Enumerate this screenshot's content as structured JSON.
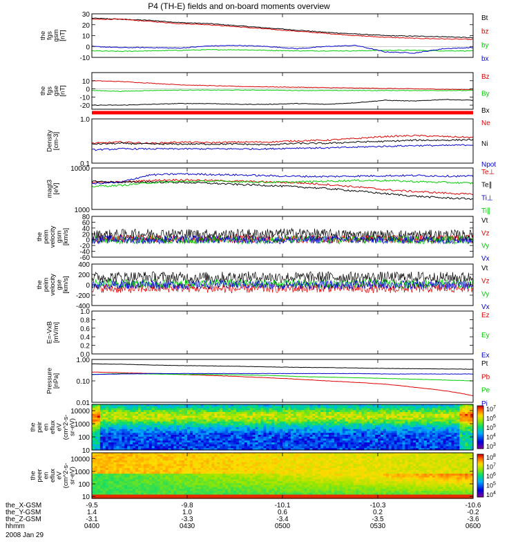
{
  "title": "P4 (TH-E) fields and on-board moments overview",
  "date_label": "2008 Jan 29",
  "colors": {
    "black": "#000000",
    "red": "#dd0000",
    "green": "#00cc00",
    "blue": "#0000cc",
    "status_bar": "#ff0000"
  },
  "chart_data": [
    {
      "type": "line",
      "id": "fgs_gsm",
      "ylabel": [
        "the",
        "fgs",
        "gsm",
        "[nT]"
      ],
      "ylim": [
        -10,
        30
      ],
      "yticks": [
        -10,
        0,
        10,
        20,
        30
      ],
      "yticklabels": [
        "-10",
        "0",
        "10",
        "20",
        "30"
      ],
      "log": false,
      "series": [
        {
          "name": "Bt",
          "color": "#000000",
          "values": [
            26,
            25,
            24,
            22,
            21,
            19,
            17,
            15,
            13,
            11.5,
            10,
            9.5,
            9,
            8
          ]
        },
        {
          "name": "bz",
          "color": "#dd0000",
          "values": [
            25,
            25,
            23,
            21,
            20,
            18,
            16,
            14,
            12,
            10,
            8.5,
            7.5,
            7,
            6.5
          ]
        },
        {
          "name": "by",
          "color": "#00cc00",
          "values": [
            -4,
            -4.5,
            -4,
            -3.5,
            -3,
            -3,
            -3.5,
            -4,
            -4,
            -4,
            -3.5,
            -3.5,
            -4,
            -4
          ]
        },
        {
          "name": "bx",
          "color": "#0000cc",
          "values": [
            0,
            -1,
            -1,
            -1.5,
            0.5,
            1,
            0,
            -2,
            0,
            1,
            -5,
            -6,
            -2,
            -1
          ]
        }
      ]
    },
    {
      "type": "line",
      "id": "fgs_gse",
      "ylabel": [
        "the",
        "fgs",
        "gse",
        "[nT]"
      ],
      "ylim": [
        -25,
        20
      ],
      "yticks": [
        -20,
        -10,
        0,
        10
      ],
      "yticklabels": [
        "-20",
        "-10",
        "0",
        "10"
      ],
      "log": false,
      "series": [
        {
          "name": "Bz",
          "color": "#dd0000",
          "values": [
            10,
            9,
            7,
            5,
            4,
            3,
            2.5,
            2,
            1.5,
            1,
            0.5,
            0,
            -0.5,
            -1
          ]
        },
        {
          "name": "By",
          "color": "#00cc00",
          "values": [
            -2,
            -3,
            -2,
            -1.5,
            -1.5,
            -1.5,
            -1.5,
            -2,
            -2,
            -2,
            -2,
            -2,
            -2,
            -2
          ]
        },
        {
          "name": "Bx",
          "color": "#000000",
          "values": [
            -20,
            -20,
            -19,
            -18,
            -18,
            -19,
            -19,
            -18,
            -19,
            -17,
            -14,
            -15,
            -13,
            -14
          ]
        }
      ]
    },
    {
      "type": "line",
      "id": "density",
      "ylabel": [
        "Density",
        "[cm-3]"
      ],
      "ylim": [
        0.1,
        1.0
      ],
      "yticks": [
        0.1,
        1.0
      ],
      "yticklabels": [
        "0.1",
        "1.0"
      ],
      "log": true,
      "series": [
        {
          "name": "Ne",
          "color": "#dd0000",
          "values": [
            0.28,
            0.3,
            0.28,
            0.3,
            0.29,
            0.3,
            0.3,
            0.32,
            0.33,
            0.36,
            0.4,
            0.42,
            0.4,
            0.38
          ]
        },
        {
          "name": "Ni",
          "color": "#000000",
          "values": [
            0.27,
            0.28,
            0.27,
            0.27,
            0.27,
            0.27,
            0.26,
            0.28,
            0.28,
            0.3,
            0.31,
            0.33,
            0.33,
            0.34
          ]
        },
        {
          "name": "Npot",
          "color": "#0000cc",
          "values": [
            0.2,
            0.21,
            0.21,
            0.21,
            0.21,
            0.21,
            0.21,
            0.22,
            0.22,
            0.23,
            0.24,
            0.25,
            0.25,
            0.26
          ]
        }
      ]
    },
    {
      "type": "line",
      "id": "temperature",
      "ylabel": [
        "magt3",
        "[eV]"
      ],
      "ylim": [
        1000,
        10000
      ],
      "yticks": [
        1000,
        10000
      ],
      "yticklabels": [
        "1000",
        "10000"
      ],
      "log": true,
      "series": [
        {
          "name": "Te⊥",
          "color": "#dd0000",
          "values": [
            4500,
            4600,
            5000,
            5200,
            5000,
            4800,
            4600,
            4400,
            4000,
            3500,
            3000,
            2700,
            2500,
            2300
          ]
        },
        {
          "name": "Te∥",
          "color": "#000000",
          "values": [
            4800,
            4500,
            4600,
            4500,
            4300,
            4000,
            3800,
            3500,
            3200,
            2800,
            2400,
            2100,
            1900,
            1800
          ]
        },
        {
          "name": "Ti⊥",
          "color": "#0000cc",
          "values": [
            4200,
            4500,
            6800,
            7200,
            7000,
            6800,
            6500,
            6300,
            6200,
            6400,
            6500,
            6600,
            6400,
            6300
          ]
        },
        {
          "name": "Ti∥",
          "color": "#00cc00",
          "values": [
            3600,
            3800,
            4400,
            4700,
            4800,
            4700,
            4500,
            4600,
            4800,
            5000,
            5000,
            4700,
            4500,
            4300
          ]
        }
      ]
    },
    {
      "type": "line",
      "id": "velocity_gsm",
      "ylabel": [
        "the",
        "peim",
        "velocity",
        "gsm",
        "[km/s]"
      ],
      "ylim": [
        -60,
        80
      ],
      "yticks": [
        -60,
        -40,
        -20,
        0,
        20,
        40,
        60,
        80
      ],
      "yticklabels": [
        "-60",
        "-40",
        "-20",
        "0",
        "20",
        "40",
        "60",
        "80"
      ],
      "log": false,
      "series": [
        {
          "name": "Vt",
          "color": "#000000",
          "values": [
            15,
            18,
            20,
            20,
            18,
            18,
            20,
            22,
            18,
            16,
            15,
            15,
            16,
            15
          ]
        },
        {
          "name": "Vz",
          "color": "#dd0000",
          "values": [
            2,
            3,
            2,
            1,
            2,
            3,
            2,
            2,
            1,
            2,
            2,
            1,
            2,
            2
          ]
        },
        {
          "name": "Vy",
          "color": "#00cc00",
          "values": [
            -1,
            -2,
            0,
            -1,
            0,
            -2,
            -1,
            0,
            -1,
            -1,
            0,
            -1,
            -1,
            0
          ]
        },
        {
          "name": "Vx",
          "color": "#0000cc",
          "values": [
            0,
            1,
            -1,
            0,
            1,
            0,
            -1,
            0,
            1,
            0,
            0,
            1,
            0,
            0
          ]
        }
      ]
    },
    {
      "type": "line",
      "id": "velocity_gse",
      "ylabel": [
        "the",
        "peim",
        "velocity",
        "gse",
        "[km/s]"
      ],
      "ylim": [
        -400,
        400
      ],
      "yticks": [
        -400,
        -200,
        0,
        200,
        400
      ],
      "yticklabels": [
        "-400",
        "-200",
        "0",
        "200",
        "400"
      ],
      "log": false,
      "series": [
        {
          "name": "Vt",
          "color": "#000000",
          "values": [
            140,
            150,
            150,
            140,
            140,
            150,
            145,
            140,
            150,
            140,
            140,
            145,
            140,
            140
          ]
        },
        {
          "name": "Vz",
          "color": "#dd0000",
          "values": [
            -60,
            -80,
            -70,
            -60,
            -70,
            -80,
            -70,
            -70,
            -60,
            -70,
            -80,
            -70,
            -70,
            -60
          ]
        },
        {
          "name": "Vy",
          "color": "#00cc00",
          "values": [
            20,
            30,
            20,
            10,
            25,
            20,
            10,
            20,
            10,
            20,
            20,
            10,
            20,
            10
          ]
        },
        {
          "name": "Vx",
          "color": "#0000cc",
          "values": [
            -10,
            0,
            10,
            -5,
            0,
            5,
            -5,
            0,
            -10,
            0,
            5,
            -5,
            0,
            0
          ]
        }
      ]
    },
    {
      "type": "line",
      "id": "efield",
      "ylabel": [
        "E=-VxB",
        "[mV/m]"
      ],
      "ylim": [
        0.0,
        1.0
      ],
      "yticks": [
        0.0,
        0.2,
        0.4,
        0.6,
        0.8,
        1.0
      ],
      "yticklabels": [
        "0.0",
        "0.2",
        "0.4",
        "0.6",
        "0.8",
        "1.0"
      ],
      "log": false,
      "series": [
        {
          "name": "Ez",
          "color": "#dd0000",
          "values": []
        },
        {
          "name": "Ey",
          "color": "#00cc00",
          "values": []
        },
        {
          "name": "Ex",
          "color": "#0000cc",
          "values": []
        }
      ]
    },
    {
      "type": "line",
      "id": "pressure",
      "ylabel": [
        "Pressure",
        "[nPa]"
      ],
      "ylim": [
        0.01,
        1.0
      ],
      "yticks": [
        0.01,
        0.1,
        1.0
      ],
      "yticklabels": [
        "0.01",
        "0.10",
        "1.00"
      ],
      "log": true,
      "series": [
        {
          "name": "Pt",
          "color": "#000000",
          "values": [
            0.62,
            0.6,
            0.55,
            0.52,
            0.5,
            0.48,
            0.45,
            0.43,
            0.42,
            0.4,
            0.38,
            0.37,
            0.36,
            0.35
          ]
        },
        {
          "name": "Pb",
          "color": "#dd0000",
          "values": [
            0.26,
            0.24,
            0.22,
            0.2,
            0.18,
            0.16,
            0.14,
            0.12,
            0.1,
            0.085,
            0.07,
            0.05,
            0.035,
            0.02
          ]
        },
        {
          "name": "Pe",
          "color": "#00cc00",
          "values": [
            0.2,
            0.22,
            0.21,
            0.2,
            0.2,
            0.19,
            0.18,
            0.16,
            0.15,
            0.14,
            0.13,
            0.12,
            0.11,
            0.1
          ]
        },
        {
          "name": "Pi",
          "color": "#0000cc",
          "values": [
            0.2,
            0.21,
            0.22,
            0.22,
            0.22,
            0.22,
            0.22,
            0.22,
            0.22,
            0.22,
            0.21,
            0.21,
            0.21,
            0.21
          ]
        }
      ]
    },
    {
      "type": "heatmap",
      "id": "ion_spectrogram",
      "ylabel": [
        "the",
        "peir",
        "en",
        "eflux",
        "eV",
        "(cm^2-s-",
        "sr-eV)"
      ],
      "ylim": [
        10,
        30000
      ],
      "yticks": [
        10,
        100,
        1000,
        10000
      ],
      "yticklabels": [
        "10",
        "100",
        "1000",
        "10000"
      ],
      "log": true,
      "colorbar": {
        "range": [
          1000,
          10000000
        ],
        "ticks": [
          "10^3",
          "10^4",
          "10^5",
          "10^6",
          "10^7"
        ]
      }
    },
    {
      "type": "heatmap",
      "id": "electron_spectrogram",
      "ylabel": [
        "the",
        "peer",
        "en",
        "eflux",
        "eV",
        "(cm^2-s-",
        "sr-eV)"
      ],
      "ylim": [
        7,
        30000
      ],
      "yticks": [
        10,
        100,
        1000,
        10000
      ],
      "yticklabels": [
        "10",
        "100",
        "1000",
        "10000"
      ],
      "log": true,
      "colorbar": {
        "range": [
          3000,
          1000000000
        ],
        "ticks": [
          "10^4",
          "10^5",
          "10^6",
          "10^7",
          "10^8"
        ]
      }
    }
  ],
  "x_axis": {
    "row_labels": [
      "the_X-GSM",
      "the_Y-GSM",
      "the_Z-GSM",
      "hhmm"
    ],
    "ticks": [
      {
        "x": "0400",
        "vals": [
          "-9.5",
          "1.4",
          "-3.1",
          "0400"
        ]
      },
      {
        "x": "0430",
        "vals": [
          "-9.8",
          "1.0",
          "-3.3",
          "0430"
        ]
      },
      {
        "x": "0500",
        "vals": [
          "-10.1",
          "0.6",
          "-3.4",
          "0500"
        ]
      },
      {
        "x": "0530",
        "vals": [
          "-10.3",
          "0.2",
          "-3.5",
          "0530"
        ]
      },
      {
        "x": "0600",
        "vals": [
          "-10.6",
          "-0.2",
          "-3.6",
          "0600"
        ]
      }
    ]
  }
}
